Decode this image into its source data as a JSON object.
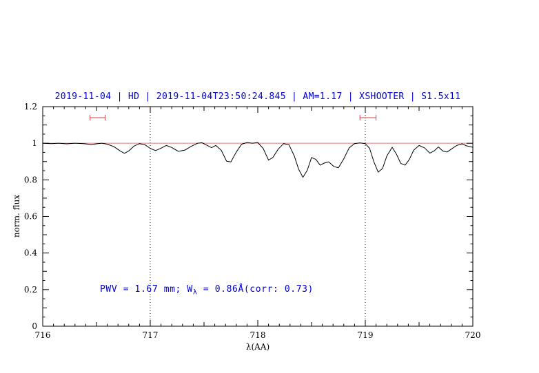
{
  "chart_data": {
    "type": "line",
    "title": "2019-11-04 | HD | 2019-11-04T23:50:24.845 | AM=1.17 | XSHOOTER | S1.5x11",
    "xlabel": "λ(AA)",
    "ylabel": "norm. flux",
    "xlim": [
      716,
      720
    ],
    "ylim": [
      0,
      1.2
    ],
    "xticks": [
      716,
      717,
      718,
      719,
      720
    ],
    "xtick_labels": [
      "716",
      "717",
      "718",
      "719",
      "720"
    ],
    "yticks": [
      0,
      0.2,
      0.4,
      0.6,
      0.8,
      1,
      1.2
    ],
    "ytick_labels": [
      "0",
      "0.2",
      "0.4",
      "0.6",
      "0.8",
      "1",
      "1.2"
    ],
    "grid": "off",
    "legend": "none",
    "vlines": [
      717,
      719
    ],
    "hline": 1.0,
    "range_markers": [
      {
        "x1": 716.44,
        "x2": 716.58,
        "y": 1.14
      },
      {
        "x1": 718.95,
        "x2": 719.1,
        "y": 1.14
      }
    ],
    "annotation": {
      "text_pre": "PWV = 1.67 mm; W",
      "sub": "λ",
      "text_post": " = 0.86Å(corr: 0.73)",
      "x": 716.53,
      "y": 0.2
    },
    "colors": {
      "accent_text": "#0000CD",
      "hline": "#D97B7B",
      "marker": "#D94444",
      "spectrum": "#000000",
      "axis": "#000000"
    },
    "series": [
      {
        "name": "telluric-spectrum",
        "x": [
          716.0,
          716.08,
          716.15,
          716.22,
          716.3,
          716.38,
          716.45,
          716.5,
          716.55,
          716.6,
          716.66,
          716.72,
          716.76,
          716.8,
          716.85,
          716.9,
          716.95,
          717.0,
          717.05,
          717.1,
          717.15,
          717.2,
          717.26,
          717.32,
          717.38,
          717.44,
          717.48,
          717.53,
          717.57,
          717.61,
          717.66,
          717.71,
          717.75,
          717.8,
          717.85,
          717.9,
          717.95,
          718.0,
          718.05,
          718.1,
          718.14,
          718.19,
          718.24,
          718.29,
          718.34,
          718.38,
          718.42,
          718.46,
          718.5,
          718.54,
          718.58,
          718.62,
          718.66,
          718.71,
          718.75,
          718.8,
          718.85,
          718.9,
          718.95,
          719.0,
          719.04,
          719.08,
          719.12,
          719.16,
          719.2,
          719.25,
          719.29,
          719.33,
          719.37,
          719.41,
          719.45,
          719.5,
          719.55,
          719.6,
          719.64,
          719.68,
          719.72,
          719.76,
          719.8,
          719.85,
          719.9,
          719.94,
          720.0
        ],
        "y": [
          1.0,
          0.998,
          1.0,
          0.997,
          1.0,
          0.998,
          0.993,
          0.997,
          1.0,
          0.995,
          0.982,
          0.958,
          0.945,
          0.958,
          0.985,
          0.998,
          0.992,
          0.972,
          0.96,
          0.973,
          0.988,
          0.977,
          0.956,
          0.962,
          0.983,
          1.0,
          1.003,
          0.988,
          0.976,
          0.988,
          0.962,
          0.902,
          0.898,
          0.952,
          0.995,
          1.004,
          1.0,
          1.004,
          0.972,
          0.908,
          0.922,
          0.968,
          0.998,
          0.992,
          0.93,
          0.858,
          0.814,
          0.852,
          0.922,
          0.912,
          0.88,
          0.892,
          0.898,
          0.872,
          0.866,
          0.915,
          0.975,
          0.998,
          1.002,
          0.998,
          0.972,
          0.898,
          0.842,
          0.862,
          0.93,
          0.978,
          0.94,
          0.89,
          0.88,
          0.912,
          0.962,
          0.988,
          0.975,
          0.946,
          0.958,
          0.98,
          0.958,
          0.952,
          0.968,
          0.988,
          0.997,
          0.986,
          0.978
        ]
      }
    ]
  }
}
